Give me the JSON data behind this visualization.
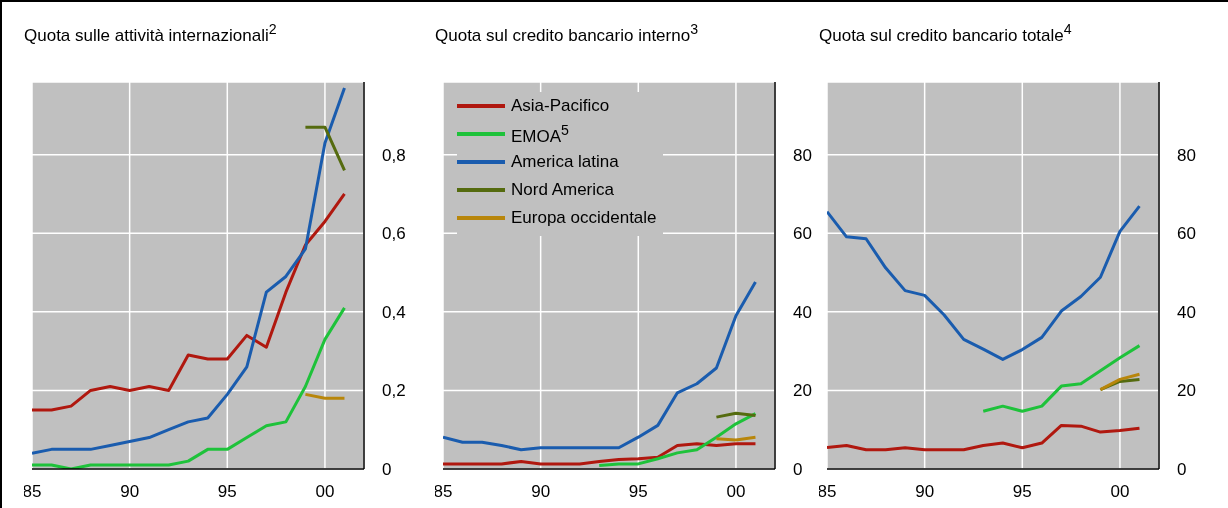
{
  "chart_data": [
    {
      "type": "line",
      "title": "Quota sulle attività internazionali$^{2}$",
      "x": [
        1985,
        1986,
        1987,
        1988,
        1989,
        1990,
        1991,
        1992,
        1993,
        1994,
        1995,
        1996,
        1997,
        1998,
        1999,
        2000,
        2001
      ],
      "series": [
        {
          "color": "#b0180f",
          "values": [
            0.15,
            0.15,
            0.16,
            0.2,
            0.21,
            0.2,
            0.21,
            0.2,
            0.29,
            0.28,
            0.28,
            0.34,
            0.31,
            0.45,
            0.57,
            0.63,
            0.7
          ]
        },
        {
          "color": "#1ec23a",
          "values": [
            0.01,
            0.01,
            0.0,
            0.01,
            0.01,
            0.01,
            0.01,
            0.01,
            0.02,
            0.05,
            0.05,
            0.08,
            0.11,
            0.12,
            0.21,
            0.33,
            0.41
          ]
        },
        {
          "color": "#1a5cae",
          "values": [
            0.04,
            0.05,
            0.05,
            0.05,
            0.06,
            0.07,
            0.08,
            0.1,
            0.12,
            0.13,
            0.19,
            0.26,
            0.45,
            0.49,
            0.56,
            0.83,
            0.97
          ]
        },
        {
          "color": "#556b0f",
          "values": [
            null,
            null,
            null,
            null,
            null,
            null,
            null,
            null,
            null,
            null,
            null,
            null,
            null,
            null,
            0.87,
            0.87,
            0.76
          ]
        },
        {
          "color": "#b8860b",
          "values": [
            null,
            null,
            null,
            null,
            null,
            null,
            null,
            null,
            null,
            null,
            null,
            null,
            null,
            null,
            0.19,
            0.18,
            0.18
          ]
        }
      ],
      "xlim": [
        1985,
        2002
      ],
      "xticks": [
        {
          "value": 1985,
          "label": "85"
        },
        {
          "value": 1990,
          "label": "90"
        },
        {
          "value": 1995,
          "label": "95"
        },
        {
          "value": 2000,
          "label": "00"
        }
      ],
      "ylim": [
        0,
        0.985
      ],
      "yticks": [
        0,
        {
          "value": 0.2,
          "label": "0,2"
        },
        {
          "value": 0.4,
          "label": "0,4"
        },
        {
          "value": 0.6,
          "label": "0,6"
        },
        {
          "value": 0.8,
          "label": "0,8"
        }
      ],
      "grid": true
    },
    {
      "type": "line",
      "title": "Quota sul credito bancario interno$^{3}$",
      "x": [
        1985,
        1986,
        1987,
        1988,
        1989,
        1990,
        1991,
        1992,
        1993,
        1994,
        1995,
        1996,
        1997,
        1998,
        1999,
        2000,
        2001
      ],
      "series": [
        {
          "name": "Asia-Pacifico",
          "color": "#b0180f",
          "values": [
            1.3,
            1.3,
            1.3,
            1.3,
            1.9,
            1.3,
            1.3,
            1.3,
            1.9,
            2.4,
            2.6,
            3.0,
            6.0,
            6.4,
            6.0,
            6.4,
            6.4
          ]
        },
        {
          "name": "EMOA$^{5}$",
          "color": "#1ec23a",
          "values": [
            null,
            null,
            null,
            null,
            null,
            null,
            null,
            null,
            0.9,
            1.3,
            1.3,
            2.6,
            4.1,
            4.9,
            8.1,
            11.5,
            14.1
          ]
        },
        {
          "name": "America latina",
          "color": "#1a5cae",
          "values": [
            8.1,
            6.8,
            6.8,
            6.0,
            4.9,
            5.4,
            5.4,
            5.4,
            5.4,
            5.4,
            8.1,
            11.1,
            19.4,
            21.7,
            25.7,
            39.0,
            47.6
          ]
        },
        {
          "name": "Nord America",
          "color": "#556b0f",
          "values": [
            null,
            null,
            null,
            null,
            null,
            null,
            null,
            null,
            null,
            null,
            null,
            null,
            null,
            null,
            13.2,
            14.2,
            13.6
          ]
        },
        {
          "name": "Europa occidentale",
          "color": "#b8860b",
          "values": [
            null,
            null,
            null,
            null,
            null,
            null,
            null,
            null,
            null,
            null,
            null,
            null,
            null,
            null,
            7.7,
            7.4,
            8.1
          ]
        }
      ],
      "xlim": [
        1985,
        2002
      ],
      "xticks": [
        {
          "value": 1985,
          "label": "85"
        },
        {
          "value": 1990,
          "label": "90"
        },
        {
          "value": 1995,
          "label": "95"
        },
        {
          "value": 2000,
          "label": "00"
        }
      ],
      "ylim": [
        0,
        98.5
      ],
      "yticks": [
        0,
        20,
        40,
        60,
        80
      ],
      "grid": true,
      "legend": "top left"
    },
    {
      "type": "line",
      "title": "Quota sul credito bancario totale$^{4}$",
      "x": [
        1985,
        1986,
        1987,
        1988,
        1989,
        1990,
        1991,
        1992,
        1993,
        1994,
        1995,
        1996,
        1997,
        1998,
        1999,
        2000,
        2001
      ],
      "series": [
        {
          "color": "#b0180f",
          "values": [
            5.5,
            6.0,
            4.9,
            4.9,
            5.4,
            4.9,
            4.9,
            4.9,
            6.0,
            6.6,
            5.4,
            6.6,
            11.1,
            10.9,
            9.4,
            9.8,
            10.4
          ]
        },
        {
          "color": "#1ec23a",
          "values": [
            null,
            null,
            null,
            null,
            null,
            null,
            null,
            null,
            14.7,
            16.0,
            14.7,
            16.0,
            21.1,
            21.7,
            25.0,
            28.3,
            31.4
          ]
        },
        {
          "color": "#1a5cae",
          "values": [
            65.5,
            59.1,
            58.6,
            51.2,
            45.4,
            44.2,
            39.2,
            33.0,
            30.5,
            27.9,
            30.4,
            33.5,
            40.2,
            43.9,
            48.8,
            60.5,
            66.9
          ]
        },
        {
          "color": "#556b0f",
          "values": [
            null,
            null,
            null,
            null,
            null,
            null,
            null,
            null,
            null,
            null,
            null,
            null,
            null,
            null,
            20.2,
            22.3,
            22.8
          ]
        },
        {
          "color": "#b8860b",
          "values": [
            null,
            null,
            null,
            null,
            null,
            null,
            null,
            null,
            null,
            null,
            null,
            null,
            null,
            null,
            20.2,
            22.8,
            24.1
          ]
        }
      ],
      "xlim": [
        1985,
        2002
      ],
      "xticks": [
        {
          "value": 1985,
          "label": "85"
        },
        {
          "value": 1990,
          "label": "90"
        },
        {
          "value": 1995,
          "label": "95"
        },
        {
          "value": 2000,
          "label": "00"
        }
      ],
      "ylim": [
        0,
        98.5
      ],
      "yticks": [
        0,
        20,
        40,
        60,
        80
      ],
      "grid": true
    }
  ]
}
